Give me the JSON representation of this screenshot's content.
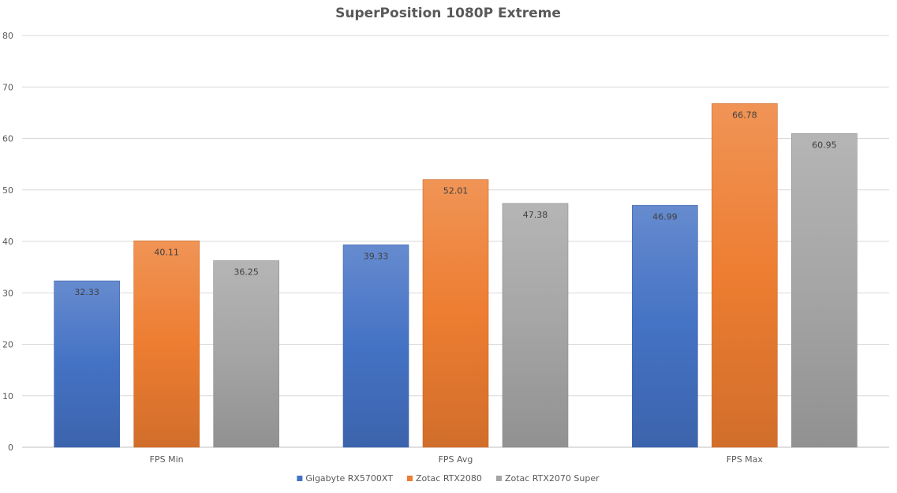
{
  "chart_data": {
    "type": "bar",
    "title": "SuperPosition 1080P Extreme",
    "categories": [
      "FPS Min",
      "FPS Avg",
      "FPS Max"
    ],
    "series": [
      {
        "name": "Gigabyte RX5700XT",
        "values": [
          32.33,
          39.33,
          46.99
        ],
        "labels": [
          "32.33",
          "39.33",
          "46.99"
        ],
        "color": "#4472C4"
      },
      {
        "name": "Zotac RTX2080",
        "values": [
          40.11,
          52.01,
          66.78
        ],
        "labels": [
          "40.11",
          "52.01",
          "66.78"
        ],
        "color": "#ED7D31"
      },
      {
        "name": "Zotac RTX2070 Super",
        "values": [
          36.25,
          47.38,
          60.95
        ],
        "labels": [
          "36.25",
          "47.38",
          "60.95"
        ],
        "color": "#A5A5A5"
      }
    ],
    "ylim": [
      0,
      80
    ],
    "yticks": [
      "0",
      "10",
      "20",
      "30",
      "40",
      "50",
      "60",
      "70",
      "80"
    ],
    "xlabel": "",
    "ylabel": "",
    "grid": true,
    "legend": "bottom"
  }
}
